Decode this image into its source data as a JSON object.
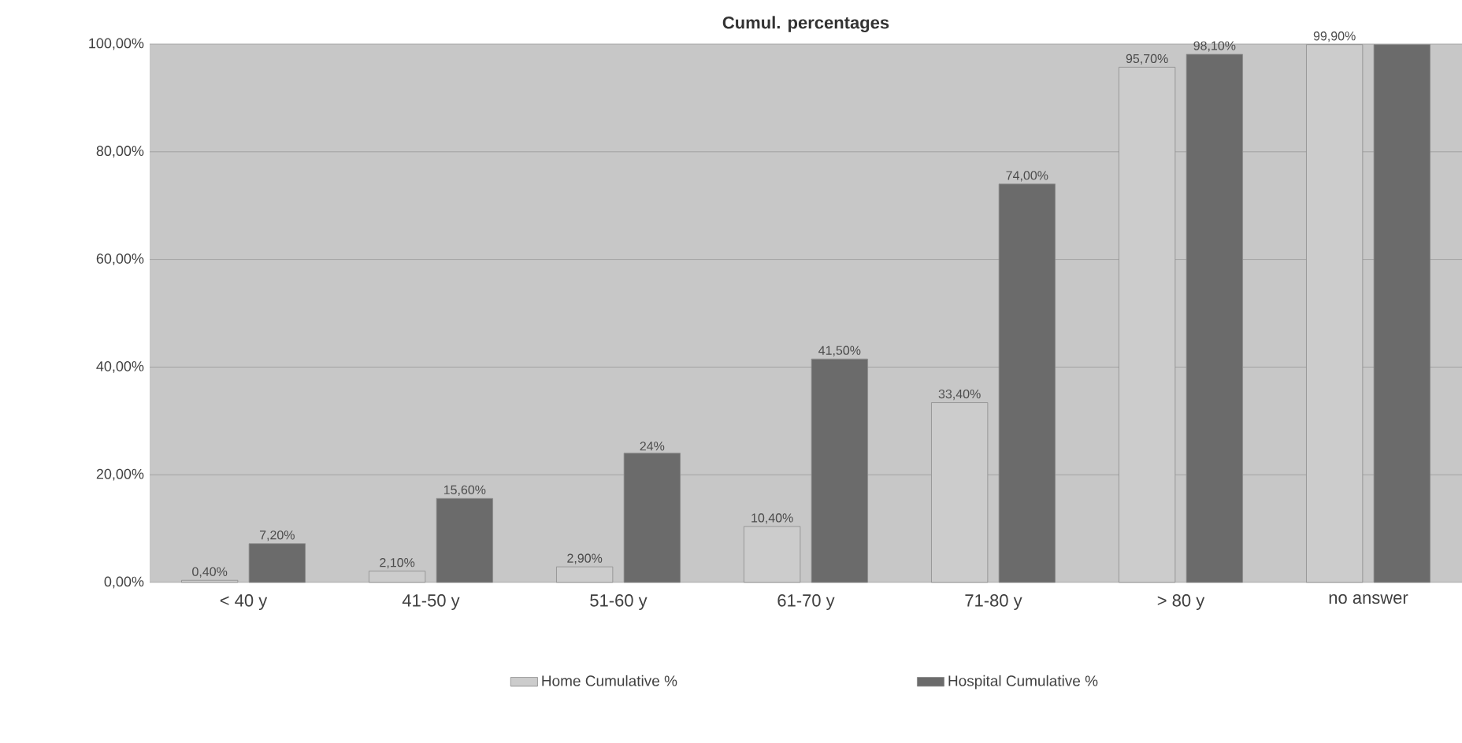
{
  "chart_data": {
    "type": "bar",
    "title": "Cumul. percentages",
    "categories": [
      "< 40 y",
      "41-50 y",
      "51-60 y",
      "61-70 y",
      "71-80 y",
      "> 80 y",
      "no answer"
    ],
    "series": [
      {
        "name": "Home Cumulative %",
        "color": "#cccccc",
        "values": [
          0.4,
          2.1,
          2.9,
          10.4,
          33.4,
          95.7,
          99.9
        ],
        "value_labels": [
          "0,40%",
          "2,10%",
          "2,90%",
          "10,40%",
          "33,40%",
          "95,70%",
          "99,90%"
        ]
      },
      {
        "name": "Hospital Cumulative %",
        "color": "#6b6b6b",
        "values": [
          7.2,
          15.6,
          24,
          41.5,
          74,
          98.1,
          99.9
        ],
        "value_labels": [
          "7,20%",
          "15,60%",
          "24%",
          "41,50%",
          "74,00%",
          "98,10%",
          null
        ]
      }
    ],
    "ylim": [
      0,
      100
    ],
    "yticks": [
      {
        "value": 0,
        "label": "0,00%"
      },
      {
        "value": 20,
        "label": "20,00%"
      },
      {
        "value": 40,
        "label": "40,00%"
      },
      {
        "value": 60,
        "label": "60,00%"
      },
      {
        "value": 80,
        "label": "80,00%"
      },
      {
        "value": 100,
        "label": "100,00%"
      }
    ],
    "grid": "y",
    "legend": "bottom"
  }
}
